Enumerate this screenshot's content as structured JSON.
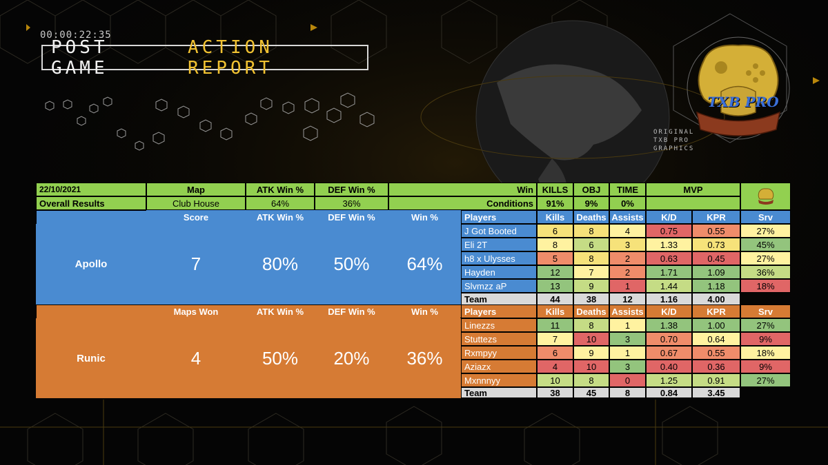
{
  "header": {
    "timer": "00:00:22:35",
    "title_main": "POST GAME",
    "title_accent": "ACTION REPORT",
    "logo_text": "TXB PRO",
    "logo_caption": [
      "ORIGINAL",
      "TXB PRO",
      "GRAPHICS"
    ]
  },
  "summary": {
    "date": "22/10/2021",
    "overall_label": "Overall Results",
    "map_label": "Map",
    "map_value": "Club House",
    "atk_label": "ATK Win %",
    "atk_value": "64%",
    "def_label": "DEF Win %",
    "def_value": "36%",
    "win_label": "Win",
    "conditions_label": "Conditions",
    "kills_label": "KILLS",
    "kills_value": "91%",
    "obj_label": "OBJ",
    "obj_value": "9%",
    "time_label": "TIME",
    "time_value": "0%",
    "mvp_label": "MVP",
    "mvp_value": ""
  },
  "teams": [
    {
      "name": "Apollo",
      "score_label": "Score",
      "score_value": "7",
      "atk_label": "ATK Win %",
      "atk_value": "80%",
      "def_label": "DEF Win %",
      "def_value": "50%",
      "win_label": "Win %",
      "win_value": "64%",
      "headers": [
        "Players",
        "Kills",
        "Deaths",
        "Assists",
        "K/D",
        "KPR",
        "Srv"
      ],
      "players": [
        {
          "name": "J Got Booted",
          "kills": "6",
          "deaths": "8",
          "assists": "4",
          "kd": "0.75",
          "kpr": "0.55",
          "srv": "27%"
        },
        {
          "name": "Eli 2T",
          "kills": "8",
          "deaths": "6",
          "assists": "3",
          "kd": "1.33",
          "kpr": "0.73",
          "srv": "45%"
        },
        {
          "name": "h8 x Ulysses",
          "kills": "5",
          "deaths": "8",
          "assists": "2",
          "kd": "0.63",
          "kpr": "0.45",
          "srv": "27%"
        },
        {
          "name": "Hayden",
          "kills": "12",
          "deaths": "7",
          "assists": "2",
          "kd": "1.71",
          "kpr": "1.09",
          "srv": "36%"
        },
        {
          "name": "Slvmzz aP",
          "kills": "13",
          "deaths": "9",
          "assists": "1",
          "kd": "1.44",
          "kpr": "1.18",
          "srv": "18%"
        }
      ],
      "team_row": {
        "label": "Team",
        "kills": "44",
        "deaths": "38",
        "assists": "12",
        "kd": "1.16",
        "kpr": "4.00"
      }
    },
    {
      "name": "Runic",
      "score_label": "Maps Won",
      "score_value": "4",
      "atk_label": "ATK Win %",
      "atk_value": "50%",
      "def_label": "DEF Win %",
      "def_value": "20%",
      "win_label": "Win %",
      "win_value": "36%",
      "headers": [
        "Players",
        "Kills",
        "Deaths",
        "Assists",
        "K/D",
        "KPR",
        "Srv"
      ],
      "players": [
        {
          "name": "Linezzs",
          "kills": "11",
          "deaths": "8",
          "assists": "1",
          "kd": "1.38",
          "kpr": "1.00",
          "srv": "27%"
        },
        {
          "name": "Stuttezs",
          "kills": "7",
          "deaths": "10",
          "assists": "3",
          "kd": "0.70",
          "kpr": "0.64",
          "srv": "9%"
        },
        {
          "name": "Rxmpyy",
          "kills": "6",
          "deaths": "9",
          "assists": "1",
          "kd": "0.67",
          "kpr": "0.55",
          "srv": "18%"
        },
        {
          "name": "Aziazx",
          "kills": "4",
          "deaths": "10",
          "assists": "3",
          "kd": "0.40",
          "kpr": "0.36",
          "srv": "9%"
        },
        {
          "name": "Mxnnnyy",
          "kills": "10",
          "deaths": "8",
          "assists": "0",
          "kd": "1.25",
          "kpr": "0.91",
          "srv": "27%"
        }
      ],
      "team_row": {
        "label": "Team",
        "kills": "38",
        "deaths": "45",
        "assists": "8",
        "kd": "0.84",
        "kpr": "3.45"
      }
    }
  ],
  "colors": {
    "accent_yellow": "#f1c232",
    "header_green": "#92d050",
    "apollo_blue": "#4a8bd1",
    "runic_orange": "#d67b34",
    "good": "#93c47d",
    "bad": "#e06666",
    "mid": "#fff2a0"
  }
}
